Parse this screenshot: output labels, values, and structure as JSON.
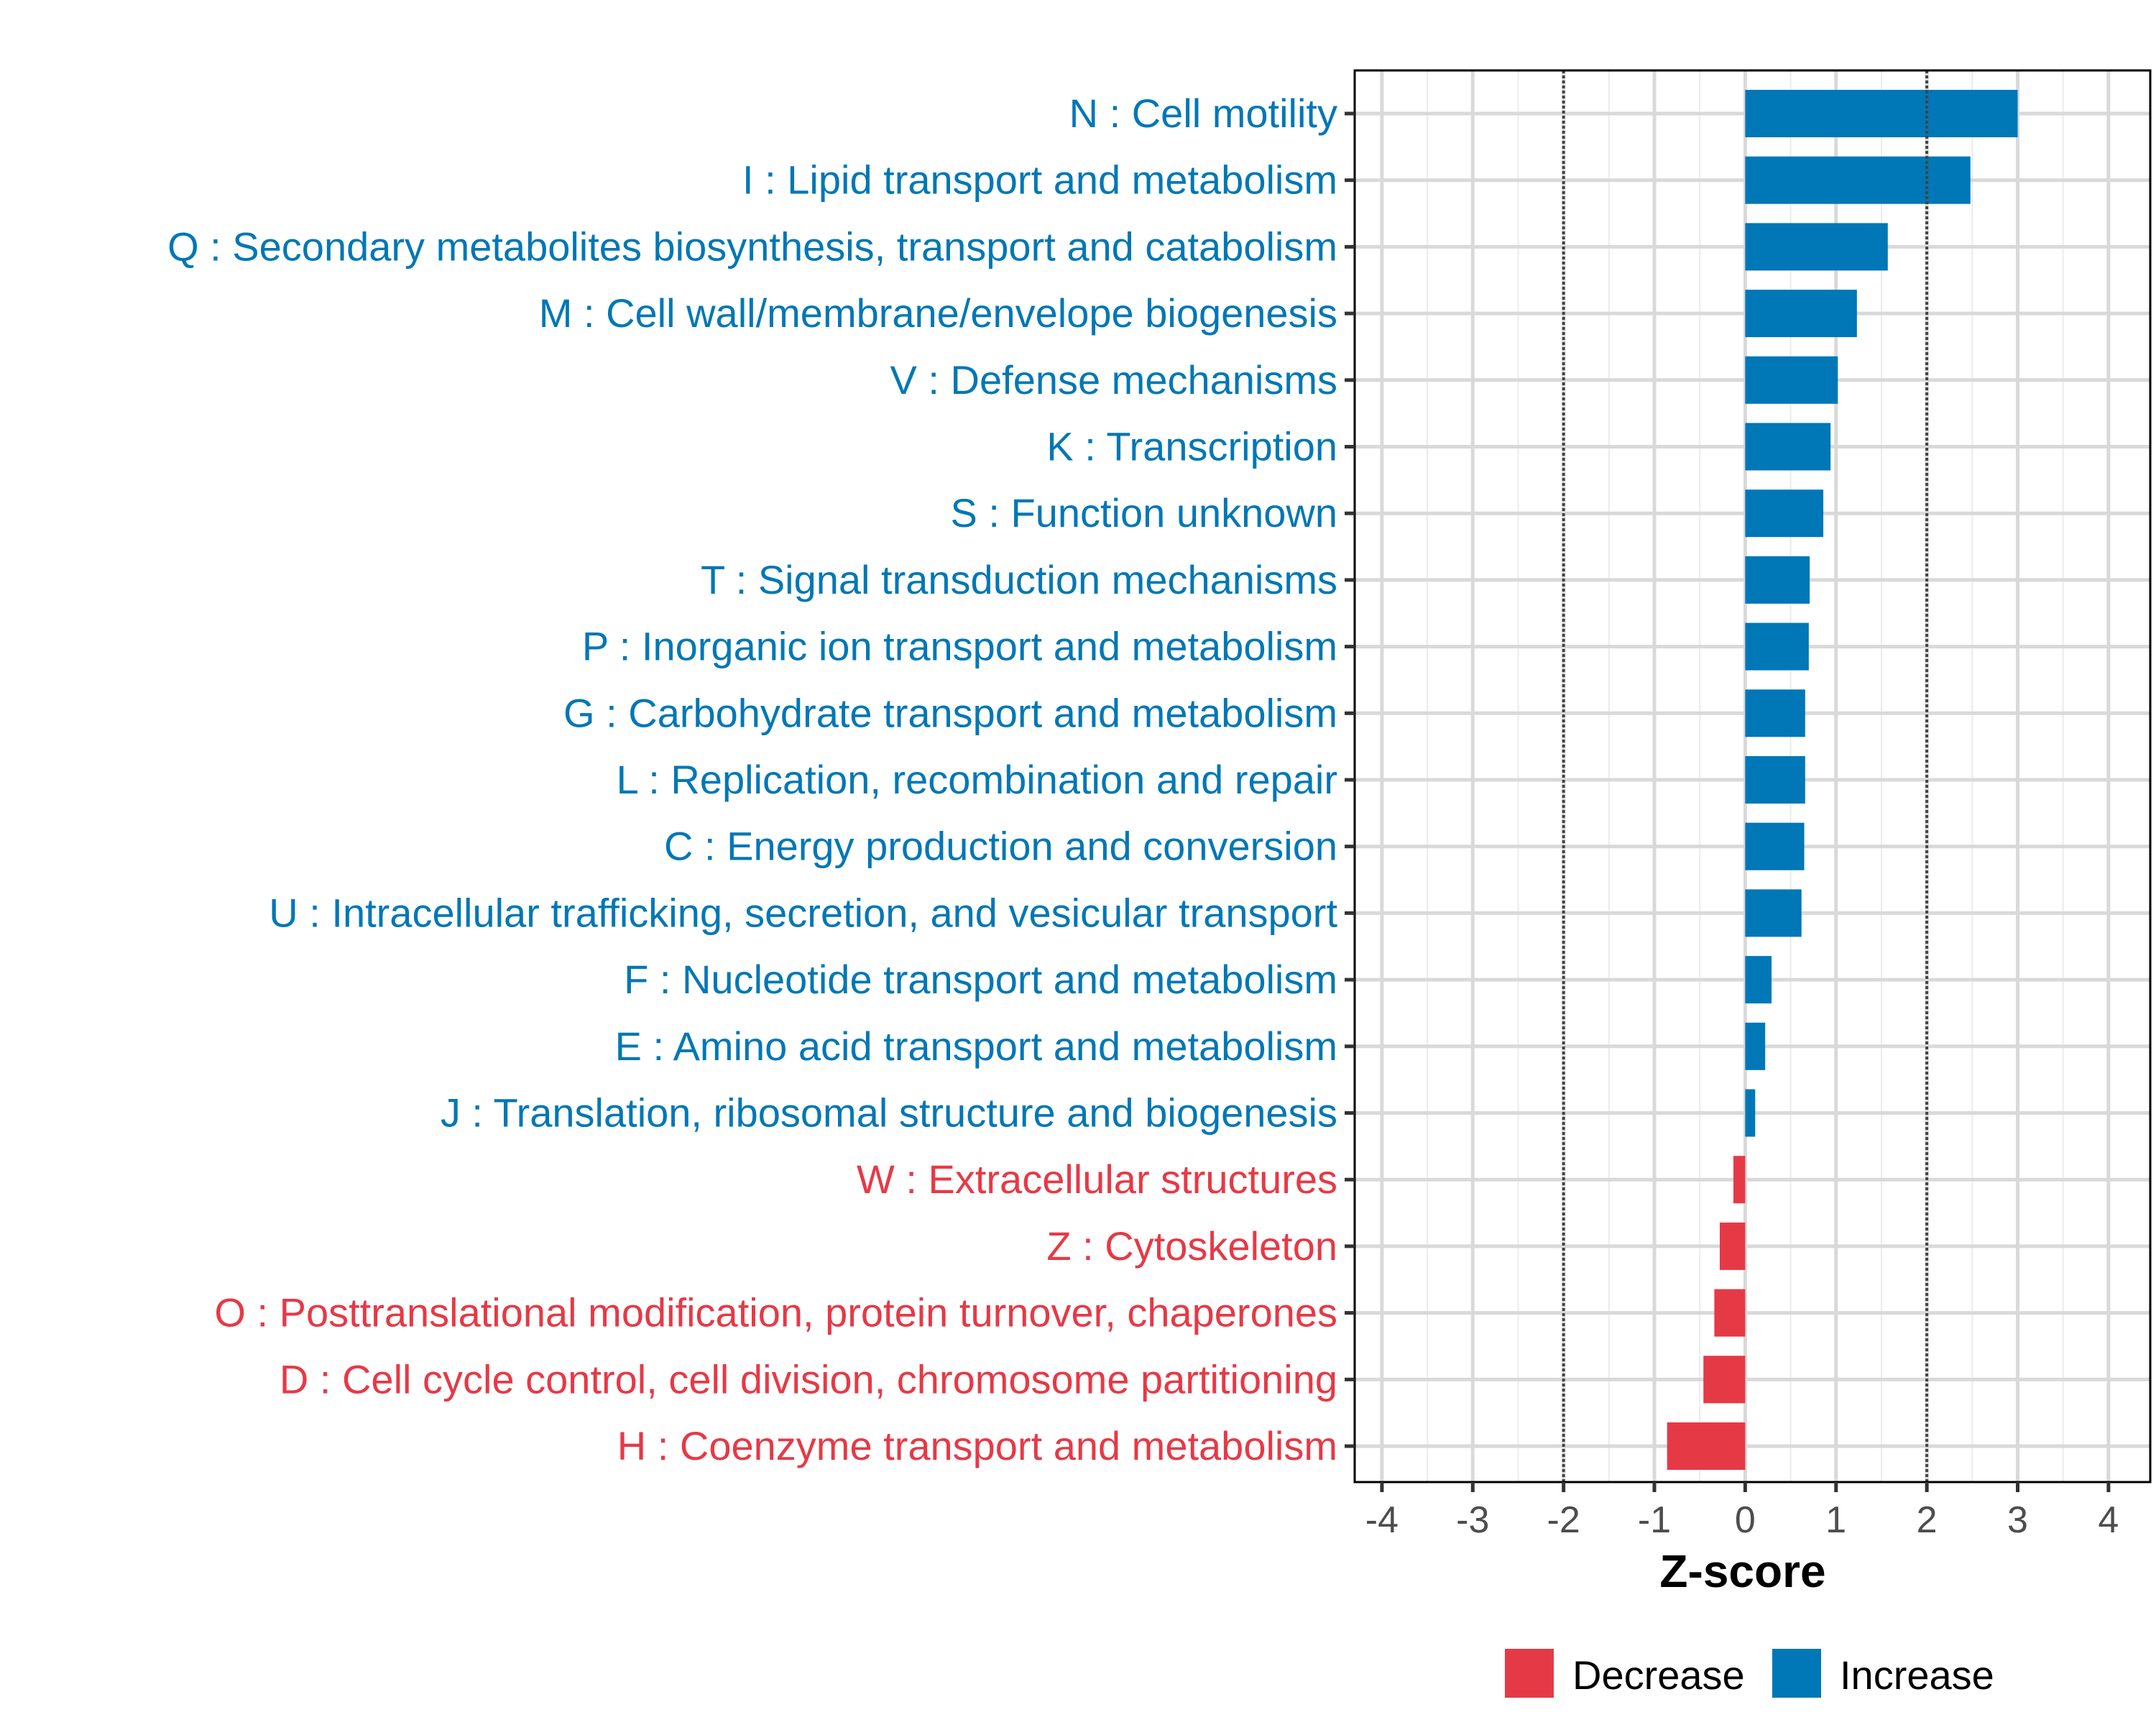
{
  "chart_data": {
    "type": "bar",
    "orientation": "horizontal",
    "title": "",
    "xlabel": "Z-score",
    "ylabel": "",
    "xlim": [
      -4.3,
      4.46
    ],
    "xticks": [
      -4,
      -3,
      -2,
      -1,
      0,
      1,
      2,
      3,
      4
    ],
    "xtick_labels": [
      "-4",
      "-3",
      "-2",
      "-1",
      "0",
      "1",
      "2",
      "3",
      "4"
    ],
    "reference_lines": [
      -2,
      2
    ],
    "grid": true,
    "legend_position": "bottom",
    "legend": [
      {
        "label": "Decrease",
        "color": "#E63946"
      },
      {
        "label": "Increase",
        "color": "#0077B6"
      }
    ],
    "categories": [
      "N : Cell motility",
      "I : Lipid transport and metabolism",
      "Q : Secondary metabolites biosynthesis, transport and catabolism",
      "M : Cell wall/membrane/envelope biogenesis",
      "V : Defense mechanisms",
      "K : Transcription",
      "S : Function unknown",
      "T : Signal transduction mechanisms",
      "P : Inorganic ion transport and metabolism",
      "G : Carbohydrate transport and metabolism",
      "L : Replication, recombination and repair",
      "C : Energy production and conversion",
      "U : Intracellular trafficking, secretion, and vesicular transport",
      "F : Nucleotide transport and metabolism",
      "E : Amino acid transport and metabolism",
      "J : Translation, ribosomal structure and biogenesis",
      "W : Extracellular structures",
      "Z : Cytoskeleton",
      "O : Posttranslational modification, protein turnover, chaperones",
      "D : Cell cycle control, cell division, chromosome partitioning",
      "H : Coenzyme transport and metabolism"
    ],
    "values": [
      3.0,
      2.48,
      1.57,
      1.23,
      1.02,
      0.94,
      0.86,
      0.71,
      0.7,
      0.66,
      0.66,
      0.65,
      0.62,
      0.29,
      0.22,
      0.11,
      -0.13,
      -0.28,
      -0.34,
      -0.46,
      -0.86
    ],
    "groups": [
      "Increase",
      "Increase",
      "Increase",
      "Increase",
      "Increase",
      "Increase",
      "Increase",
      "Increase",
      "Increase",
      "Increase",
      "Increase",
      "Increase",
      "Increase",
      "Increase",
      "Increase",
      "Increase",
      "Decrease",
      "Decrease",
      "Decrease",
      "Decrease",
      "Decrease"
    ]
  }
}
